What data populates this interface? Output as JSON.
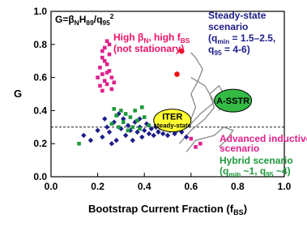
{
  "chart_data": {
    "type": "scatter",
    "xlabel": [
      "Bootstrap Current Fraction (f",
      {
        "sub": "BS"
      },
      ")"
    ],
    "ylabel": "G",
    "xlim": [
      0,
      1
    ],
    "ylim": [
      0,
      1
    ],
    "xticks": [
      {
        "value": 0,
        "label": "0.0"
      },
      0.2,
      0.4,
      0.6,
      0.8,
      {
        "value": 1,
        "label": "1.0"
      }
    ],
    "yticks": [
      {
        "value": 0,
        "label": "0.0"
      },
      0.2,
      0.4,
      0.6,
      0.8,
      {
        "value": 1,
        "label": "1.0"
      }
    ],
    "hline": 0.3,
    "series": [
      {
        "color": "#1c1c8a",
        "marker": "diamond",
        "x": [
          0.14,
          0.17,
          0.2,
          0.22,
          0.24,
          0.25,
          0.27,
          0.28,
          0.3,
          0.31,
          0.32,
          0.33,
          0.34,
          0.35,
          0.36,
          0.37,
          0.38,
          0.39,
          0.4,
          0.41,
          0.42,
          0.43,
          0.44,
          0.45,
          0.46,
          0.47,
          0.48,
          0.49,
          0.5,
          0.51,
          0.52,
          0.53,
          0.54,
          0.56,
          0.58,
          0.29,
          0.26,
          0.38,
          0.45,
          0.23
        ],
        "y": [
          0.25,
          0.22,
          0.28,
          0.24,
          0.3,
          0.27,
          0.33,
          0.22,
          0.29,
          0.35,
          0.25,
          0.31,
          0.28,
          0.22,
          0.33,
          0.27,
          0.3,
          0.24,
          0.28,
          0.32,
          0.26,
          0.29,
          0.25,
          0.3,
          0.27,
          0.31,
          0.26,
          0.29,
          0.25,
          0.28,
          0.3,
          0.26,
          0.28,
          0.27,
          0.24,
          0.38,
          0.2,
          0.35,
          0.35,
          0.35
        ]
      },
      {
        "color": "#e0208c",
        "marker": "square",
        "x": [
          0.21,
          0.22,
          0.23,
          0.24,
          0.22,
          0.25,
          0.23,
          0.24,
          0.21,
          0.26,
          0.25,
          0.22,
          0.24,
          0.23,
          0.26,
          0.2,
          0.25,
          0.22,
          0.24,
          0.27,
          0.6,
          0.62,
          0.64
        ],
        "y": [
          0.55,
          0.62,
          0.58,
          0.68,
          0.72,
          0.64,
          0.78,
          0.82,
          0.66,
          0.6,
          0.74,
          0.52,
          0.56,
          0.7,
          0.53,
          0.6,
          0.8,
          0.76,
          0.63,
          0.57,
          0.23,
          0.18,
          0.2
        ]
      },
      {
        "color": "#1e9a3c",
        "marker": "square",
        "x": [
          0.12,
          0.26,
          0.28,
          0.29,
          0.3,
          0.31,
          0.32,
          0.33,
          0.34,
          0.35,
          0.36,
          0.37,
          0.38,
          0.4,
          0.42,
          0.39,
          0.27
        ],
        "y": [
          0.2,
          0.32,
          0.37,
          0.3,
          0.4,
          0.33,
          0.38,
          0.28,
          0.36,
          0.3,
          0.4,
          0.34,
          0.29,
          0.36,
          0.31,
          0.42,
          0.41
        ]
      },
      {
        "color": "#ee1111",
        "marker": "circle",
        "x": [
          0.56,
          0.54
        ],
        "y": [
          0.76,
          0.62
        ]
      }
    ],
    "trajectories": [
      {
        "x": [
          0.45,
          0.52,
          0.6,
          0.62,
          0.6,
          0.63,
          0.65,
          0.62,
          0.6
        ],
        "y": [
          0.28,
          0.3,
          0.35,
          0.42,
          0.5,
          0.58,
          0.65,
          0.72,
          0.75
        ]
      },
      {
        "x": [
          0.55,
          0.6,
          0.66,
          0.7,
          0.68,
          0.72,
          0.75,
          0.72
        ],
        "y": [
          0.2,
          0.28,
          0.35,
          0.42,
          0.5,
          0.55,
          0.48,
          0.4
        ]
      },
      {
        "x": [
          0.58,
          0.62,
          0.7,
          0.74,
          0.78,
          0.75,
          0.72
        ],
        "y": [
          0.15,
          0.22,
          0.25,
          0.3,
          0.28,
          0.22,
          0.18
        ]
      },
      {
        "x": [
          0.6,
          0.66,
          0.7,
          0.64,
          0.6
        ],
        "y": [
          0.6,
          0.55,
          0.45,
          0.38,
          0.32
        ]
      }
    ],
    "ellipses": [
      {
        "lines": [
          "ITER",
          "steady-state"
        ],
        "x": 0.52,
        "y": 0.34,
        "color": "#ffff33"
      },
      {
        "lines": [
          "A-SSTR"
        ],
        "x": 0.78,
        "y": 0.46,
        "color": "#33bb44"
      }
    ],
    "annotations": [
      {
        "color": "#000000",
        "lines": [
          [
            "G=β",
            {
              "sub": "N"
            },
            "H",
            {
              "sub": "89"
            },
            "/q",
            {
              "sub": "95"
            },
            {
              "sup": "2"
            }
          ]
        ]
      },
      {
        "color": "#1c1c8a",
        "lines": [
          [
            "Steady-state"
          ],
          [
            "scenario"
          ],
          [
            "(q",
            {
              "sub": "min"
            },
            " = 1.5–2.5,"
          ],
          [
            "q",
            {
              "sub": "95"
            },
            " = 4-6)"
          ]
        ]
      },
      {
        "color": "#ee1166",
        "lines": [
          [
            "High β",
            {
              "sub": "N"
            },
            ", high f",
            {
              "sub": "BS"
            }
          ],
          [
            "(not stationary)"
          ]
        ]
      },
      {
        "color": "#e0208c",
        "lines": [
          [
            "Advanced inductive"
          ],
          [
            "scenario"
          ]
        ]
      },
      {
        "color": "#1e9a3c",
        "lines": [
          [
            "Hybrid scenario"
          ],
          [
            "(q",
            {
              "sub": "min"
            },
            " ~1, q",
            {
              "sub": "95"
            },
            " ~4)"
          ]
        ]
      }
    ]
  }
}
